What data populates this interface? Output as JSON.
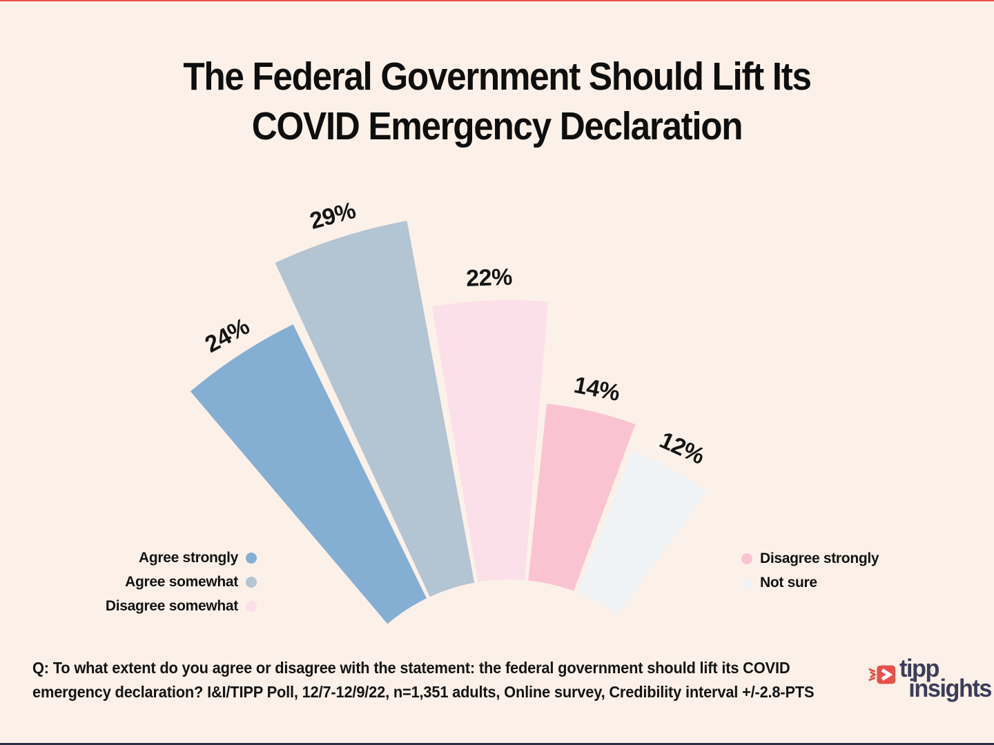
{
  "page": {
    "background": "#FCF1E8",
    "top_accent_color": "#E2554A",
    "bottom_accent_color": "#2D2F45"
  },
  "title": {
    "line1": "The Federal Government Should Lift Its",
    "line2": "COVID Emergency Declaration"
  },
  "chart_data": {
    "type": "bar",
    "variant": "radial-fan",
    "title": "The Federal Government Should Lift Its COVID Emergency Declaration",
    "categories": [
      "Agree strongly",
      "Agree somewhat",
      "Disagree somewhat",
      "Disagree strongly",
      "Not sure"
    ],
    "values": [
      24,
      29,
      22,
      14,
      12
    ],
    "labels": [
      "24%",
      "29%",
      "22%",
      "14%",
      "12%"
    ],
    "unit": "%",
    "colors": [
      "#85AED3",
      "#B3C4D3",
      "#FBDFE9",
      "#FAC3D2",
      "#F0F3F5"
    ],
    "value_range": [
      0,
      29
    ],
    "legend_position": "bottom-split"
  },
  "legend": {
    "left": [
      {
        "label": "Agree strongly",
        "color": "#85AED3"
      },
      {
        "label": "Agree somewhat",
        "color": "#B3C4D3"
      },
      {
        "label": "Disagree somewhat",
        "color": "#FBDFE9"
      }
    ],
    "right": [
      {
        "label": "Disagree strongly",
        "color": "#FAC3D2"
      },
      {
        "label": "Not sure",
        "color": "#F0F3F5"
      }
    ]
  },
  "footnote": {
    "line1": "Q: To what extent do you agree or disagree with the statement: the federal government should lift its COVID",
    "line2": "emergency declaration? I&I/TIPP Poll, 12/7-12/9/22, n=1,351 adults, Online survey, Credibility interval +/-2.8-PTS"
  },
  "logo": {
    "line1": "tipp",
    "line2": "insights",
    "text_color": "#3B3D5A",
    "icon_color": "#E8504A"
  }
}
